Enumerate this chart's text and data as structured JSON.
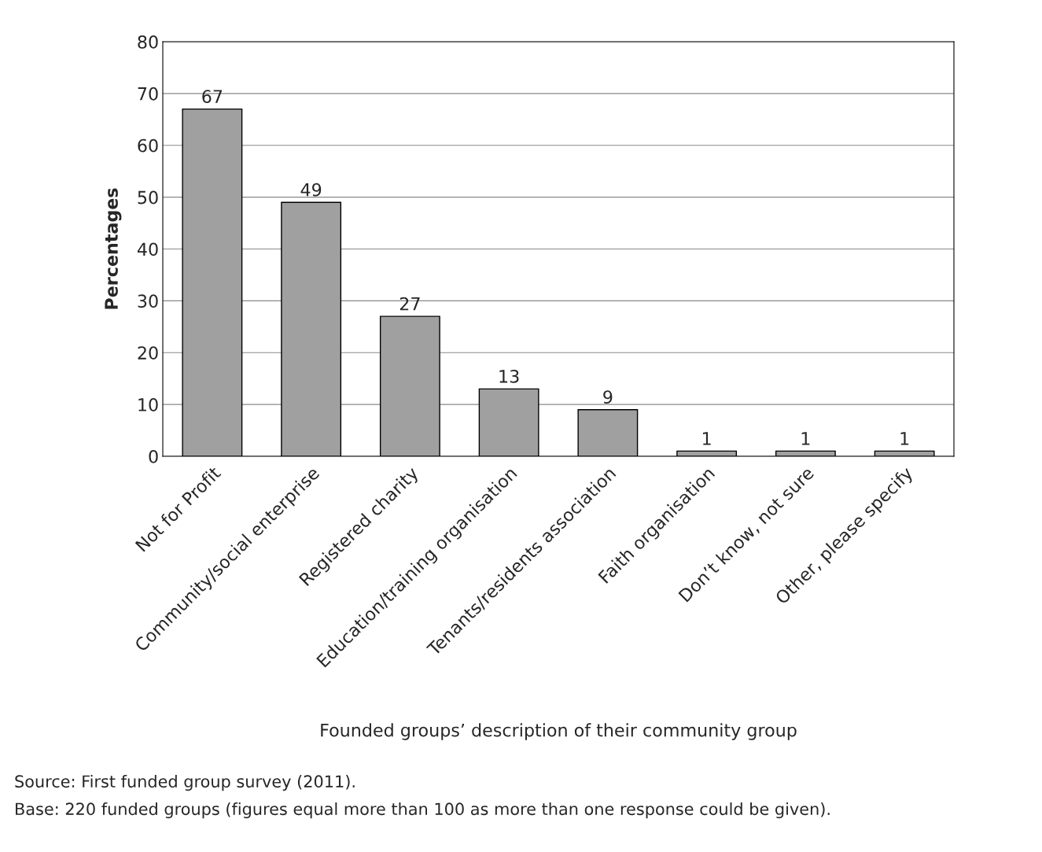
{
  "chart_data": {
    "type": "bar",
    "xlabel": "Founded groups’ description of their community group",
    "ylabel": "Percentages",
    "categories": [
      "Not for Profit",
      "Community/social enterprise",
      "Registered charity",
      "Education/training organisation",
      "Tenants/residents association",
      "Faith organisation",
      "Don’t know, not sure",
      "Other, please specify"
    ],
    "values": [
      67,
      49,
      27,
      13,
      9,
      1,
      1,
      1
    ],
    "color": "#a0a0a0",
    "data_labels": true,
    "grid": "y",
    "ylim": [
      0,
      80
    ],
    "yticks": [
      0,
      10,
      20,
      30,
      40,
      50,
      60,
      70,
      80
    ],
    "annotations": [
      "Source: First funded group survey (2011).",
      "Base: 220 funded groups (figures equal more than 100 as more than one response could be given)."
    ]
  }
}
